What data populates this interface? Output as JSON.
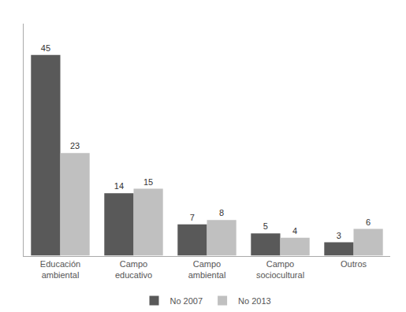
{
  "chart_data": {
    "type": "bar",
    "categories": [
      "Educación\nambiental",
      "Campo\neducativo",
      "Campo\nambiental",
      "Campo\nsociocultural",
      "Outros"
    ],
    "series": [
      {
        "name": "No 2007",
        "color": "#595959",
        "values": [
          45,
          14,
          7,
          5,
          3
        ]
      },
      {
        "name": "No 2013",
        "color": "#c0c0c0",
        "values": [
          23,
          15,
          8,
          4,
          6
        ]
      }
    ],
    "ylim": [
      0,
      52
    ],
    "grid": false,
    "legend": "bottom",
    "data_labels": true,
    "tick_labels": "x"
  }
}
